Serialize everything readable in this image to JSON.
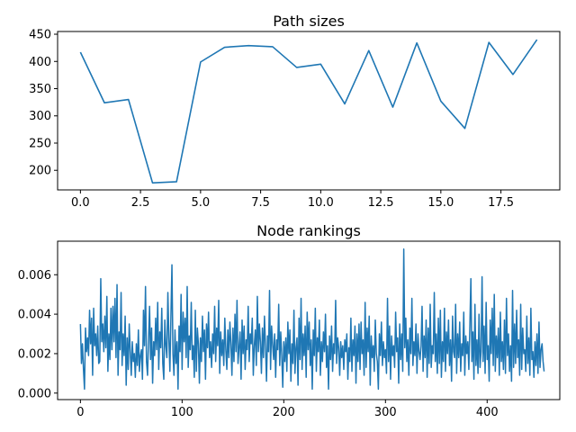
{
  "chart_data": [
    {
      "type": "line",
      "title": "Path sizes",
      "xlabel": "",
      "ylabel": "",
      "xlim": [
        -0.95,
        19.95
      ],
      "ylim": [
        164,
        455
      ],
      "xticks": [
        0.0,
        2.5,
        5.0,
        7.5,
        10.0,
        12.5,
        15.0,
        17.5
      ],
      "xtick_labels": [
        "0.0",
        "2.5",
        "5.0",
        "7.5",
        "10.0",
        "12.5",
        "15.0",
        "17.5"
      ],
      "yticks": [
        200,
        250,
        300,
        350,
        400,
        450
      ],
      "ytick_labels": [
        "200",
        "250",
        "300",
        "350",
        "400",
        "450"
      ],
      "grid": false,
      "series": [
        {
          "color": "#1f77b4",
          "x": [
            0,
            1,
            2,
            3,
            4,
            5,
            6,
            7,
            8,
            9,
            10,
            11,
            12,
            13,
            14,
            15,
            16,
            17,
            18,
            19
          ],
          "values": [
            417,
            324,
            330,
            177,
            179,
            399,
            426,
            429,
            427,
            389,
            395,
            322,
            420,
            316,
            434,
            327,
            277,
            435,
            376,
            440
          ]
        }
      ]
    },
    {
      "type": "line",
      "title": "Node rankings",
      "xlabel": "",
      "ylabel": "",
      "xlim": [
        -22.45,
        471.45
      ],
      "ylim": [
        -0.00033,
        0.0077
      ],
      "xticks": [
        0,
        100,
        200,
        300,
        400
      ],
      "xtick_labels": [
        "0",
        "100",
        "200",
        "300",
        "400"
      ],
      "yticks": [
        0.0,
        0.002,
        0.004,
        0.006
      ],
      "ytick_labels": [
        "0.000",
        "0.002",
        "0.004",
        "0.006"
      ],
      "grid": false,
      "series": [
        {
          "color": "#1f77b4",
          "x_start": 0,
          "x_step": 1,
          "values": [
            0.0035,
            0.0015,
            0.0025,
            0.0012,
            0.0002,
            0.0033,
            0.0021,
            0.0028,
            0.0019,
            0.0042,
            0.0025,
            0.0038,
            0.0009,
            0.0043,
            0.0024,
            0.003,
            0.0019,
            0.0034,
            0.0015,
            0.0016,
            0.0058,
            0.0026,
            0.0035,
            0.0021,
            0.0039,
            0.0023,
            0.0049,
            0.0011,
            0.003,
            0.0017,
            0.0043,
            0.0022,
            0.0044,
            0.0026,
            0.0048,
            0.0018,
            0.0055,
            0.0009,
            0.0031,
            0.0022,
            0.0051,
            0.0014,
            0.003,
            0.0019,
            0.0039,
            0.0004,
            0.0028,
            0.0012,
            0.0035,
            0.0021,
            0.0009,
            0.0026,
            0.0016,
            0.002,
            0.0008,
            0.0025,
            0.0014,
            0.0032,
            0.0011,
            0.0019,
            0.0022,
            0.0007,
            0.0042,
            0.0024,
            0.0054,
            0.0016,
            0.0009,
            0.0027,
            0.0044,
            0.0017,
            0.0033,
            0.0005,
            0.0026,
            0.0019,
            0.0038,
            0.0022,
            0.0046,
            0.0012,
            0.0031,
            0.0023,
            0.0043,
            0.0015,
            0.0007,
            0.0037,
            0.0024,
            0.0018,
            0.0051,
            0.0028,
            0.0011,
            0.0039,
            0.0065,
            0.002,
            0.0009,
            0.0032,
            0.0015,
            0.0026,
            0.0002,
            0.0034,
            0.0021,
            0.005,
            0.0012,
            0.0041,
            0.0026,
            0.0038,
            0.0018,
            0.0054,
            0.0013,
            0.0029,
            0.0022,
            0.0046,
            0.0017,
            0.0024,
            0.0008,
            0.0042,
            0.0011,
            0.0033,
            0.0025,
            0.0005,
            0.0028,
            0.0016,
            0.0039,
            0.0021,
            0.0032,
            0.0007,
            0.0035,
            0.0023,
            0.0041,
            0.0018,
            0.0026,
            0.0013,
            0.003,
            0.002,
            0.0044,
            0.0016,
            0.0033,
            0.0024,
            0.0047,
            0.001,
            0.0031,
            0.0019,
            0.0027,
            0.0014,
            0.0038,
            0.0022,
            0.0012,
            0.0032,
            0.0018,
            0.0036,
            0.0025,
            0.0009,
            0.0033,
            0.0016,
            0.004,
            0.0021,
            0.0047,
            0.0015,
            0.0023,
            0.0031,
            0.0007,
            0.0037,
            0.002,
            0.0034,
            0.0012,
            0.0027,
            0.0022,
            0.0044,
            0.0016,
            0.003,
            0.0025,
            0.0038,
            0.0009,
            0.0024,
            0.0032,
            0.0014,
            0.0049,
            0.0021,
            0.0035,
            0.0026,
            0.001,
            0.0033,
            0.0018,
            0.0039,
            0.0024,
            0.0006,
            0.0029,
            0.0021,
            0.0052,
            0.0012,
            0.0034,
            0.0025,
            0.0017,
            0.003,
            0.0008,
            0.0027,
            0.0022,
            0.0045,
            0.0014,
            0.0031,
            0.0019,
            0.0003,
            0.0026,
            0.0016,
            0.0028,
            0.0011,
            0.0036,
            0.002,
            0.0032,
            0.0006,
            0.0025,
            0.0015,
            0.0042,
            0.001,
            0.0023,
            0.0028,
            0.0004,
            0.0038,
            0.0017,
            0.0048,
            0.0012,
            0.003,
            0.0019,
            0.0034,
            0.0008,
            0.0041,
            0.0022,
            0.0036,
            0.0014,
            0.0027,
            0.0002,
            0.0032,
            0.0019,
            0.0043,
            0.0011,
            0.0028,
            0.0021,
            0.0037,
            0.0009,
            0.0026,
            0.0016,
            0.0031,
            0.0021,
            0.004,
            0.0013,
            0.0024,
            0.0002,
            0.0029,
            0.0017,
            0.0034,
            0.0011,
            0.0025,
            0.002,
            0.0047,
            0.0015,
            0.0028,
            0.0023,
            0.0009,
            0.0026,
            0.0018,
            0.0024,
            0.0012,
            0.0027,
            0.0021,
            0.003,
            0.0007,
            0.0023,
            0.0016,
            0.0038,
            0.0011,
            0.0027,
            0.0019,
            0.0034,
            0.0005,
            0.003,
            0.0016,
            0.0035,
            0.0012,
            0.0036,
            0.002,
            0.0027,
            0.0009,
            0.0046,
            0.0013,
            0.0033,
            0.0021,
            0.0039,
            0.0004,
            0.0029,
            0.0018,
            0.0024,
            0.0011,
            0.0037,
            0.002,
            0.0016,
            0.0002,
            0.003,
            0.0019,
            0.0036,
            0.0014,
            0.0026,
            0.0018,
            0.0022,
            0.001,
            0.0048,
            0.0016,
            0.0034,
            0.0007,
            0.0029,
            0.0019,
            0.0024,
            0.0013,
            0.0041,
            0.0021,
            0.0028,
            0.0005,
            0.0035,
            0.0017,
            0.003,
            0.0011,
            0.0073,
            0.0023,
            0.0038,
            0.0016,
            0.0027,
            0.0009,
            0.0033,
            0.002,
            0.0048,
            0.0014,
            0.0026,
            0.0019,
            0.0035,
            0.001,
            0.003,
            0.0021,
            0.0017,
            0.0024,
            0.0044,
            0.0011,
            0.0029,
            0.0018,
            0.0037,
            0.0008,
            0.0033,
            0.0015,
            0.0045,
            0.0013,
            0.0024,
            0.002,
            0.0051,
            0.0016,
            0.003,
            0.001,
            0.0038,
            0.0015,
            0.0042,
            0.0008,
            0.0026,
            0.0016,
            0.0043,
            0.0011,
            0.0031,
            0.002,
            0.0037,
            0.0014,
            0.0027,
            0.0006,
            0.0039,
            0.0021,
            0.0018,
            0.0045,
            0.001,
            0.003,
            0.0018,
            0.0036,
            0.0011,
            0.0025,
            0.0019,
            0.0041,
            0.0009,
            0.0029,
            0.002,
            0.0026,
            0.0012,
            0.0034,
            0.0058,
            0.0016,
            0.0031,
            0.0007,
            0.0045,
            0.0014,
            0.0027,
            0.001,
            0.004,
            0.0013,
            0.0021,
            0.0059,
            0.0016,
            0.0034,
            0.001,
            0.0046,
            0.0017,
            0.0024,
            0.0006,
            0.0037,
            0.002,
            0.0043,
            0.0014,
            0.005,
            0.0011,
            0.0029,
            0.0018,
            0.0033,
            0.0009,
            0.0041,
            0.0016,
            0.0026,
            0.0012,
            0.0037,
            0.001,
            0.0048,
            0.0019,
            0.003,
            0.0011,
            0.0024,
            0.0006,
            0.0052,
            0.0013,
            0.0035,
            0.0015,
            0.0042,
            0.0018,
            0.0027,
            0.0009,
            0.0045,
            0.0012,
            0.0033,
            0.002,
            0.0022,
            0.0011,
            0.0039,
            0.0015,
            0.0028,
            0.0009,
            0.0043,
            0.0017,
            0.0021,
            0.0008,
            0.0026,
            0.0014,
            0.003,
            0.001,
            0.0036,
            0.0013,
            0.0022,
            0.0025,
            0.0016,
            0.0011
          ]
        }
      ]
    }
  ]
}
